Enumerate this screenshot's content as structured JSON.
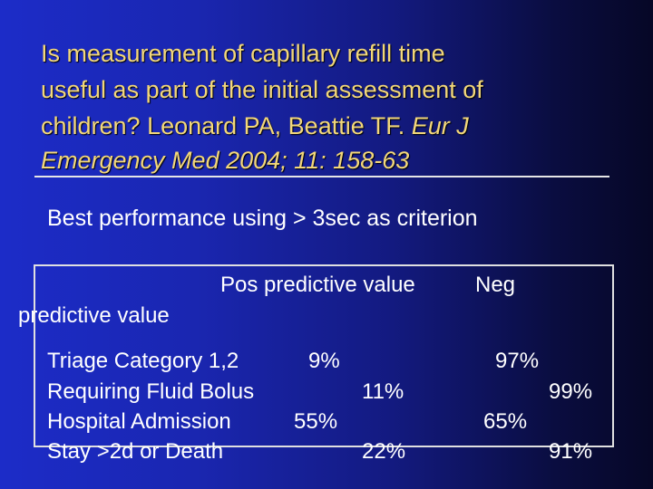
{
  "title": {
    "line1": "Is measurement of capillary refill time",
    "line2": "useful as part of the initial assessment of",
    "line3_plain": "children? Leonard PA, Beattie TF. ",
    "line3_italic": "Eur J",
    "line4_italic": "Emergency Med 2004; 11: 158-63"
  },
  "subtitle": "Best performance using  > 3sec as criterion",
  "table": {
    "header_pos": "Pos predictive value",
    "header_neg": "Neg",
    "header_neg_wrap": "predictive value",
    "rows": [
      {
        "label": "Triage Category 1,2",
        "pos": "9%",
        "neg": "97%"
      },
      {
        "label": "Requiring Fluid Bolus",
        "pos": "11%",
        "neg": "99%"
      },
      {
        "label": "Hospital Admission",
        "pos": "55%",
        "neg": "65%"
      },
      {
        "label": "Stay >2d or Death",
        "pos": "22%",
        "neg": "91%"
      }
    ]
  }
}
